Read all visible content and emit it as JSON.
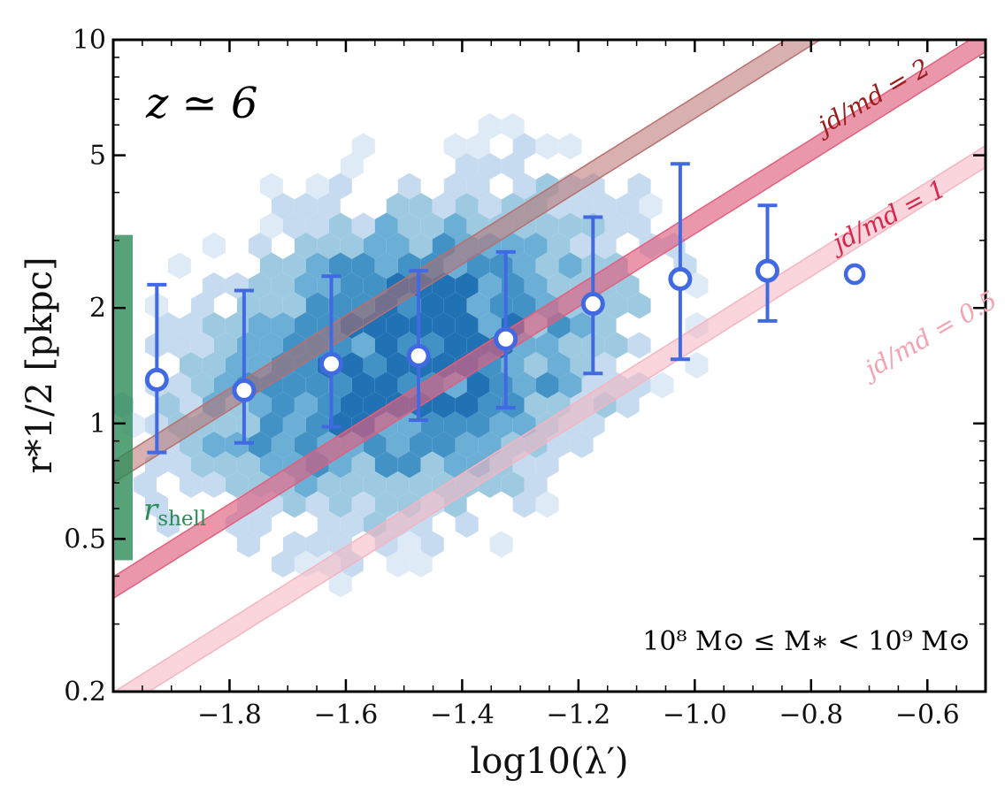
{
  "chart_data": {
    "type": "scatter",
    "title": "z ≃ 6",
    "xlabel": "log10(λ′)",
    "ylabel": "r*1/2 [pkpc]",
    "xlim": [
      -2.0,
      -0.5
    ],
    "ylim": [
      0.2,
      10
    ],
    "yscale": "log",
    "x_ticks": [
      -1.8,
      -1.6,
      -1.4,
      -1.2,
      -1.0,
      -0.8,
      -0.6
    ],
    "x_tick_labels": [
      "−1.8",
      "−1.6",
      "−1.4",
      "−1.2",
      "−1.0",
      "−0.8",
      "−0.6"
    ],
    "y_ticks": [
      0.2,
      0.5,
      1,
      2,
      5,
      10
    ],
    "y_tick_labels": [
      "0.2",
      "0.5",
      "1",
      "2",
      "5",
      "10"
    ],
    "mass_bin_label": "10⁸ M⊙ ≤ M∗ < 10⁹ M⊙",
    "rshell": {
      "label": "rshell",
      "label_main": "r",
      "label_sub": "shell",
      "range": [
        0.44,
        3.1
      ],
      "color": "#2e8b57"
    },
    "series": [
      {
        "name": "median r*1/2",
        "color": "#4169e1",
        "x": [
          -1.925,
          -1.775,
          -1.625,
          -1.475,
          -1.325,
          -1.175,
          -1.025,
          -0.875,
          -0.725
        ],
        "y": [
          1.3,
          1.22,
          1.43,
          1.5,
          1.66,
          2.05,
          2.38,
          2.5,
          2.45
        ],
        "yerr_low": [
          0.84,
          0.89,
          0.98,
          1.02,
          1.1,
          1.35,
          1.47,
          1.85,
          null
        ],
        "yerr_high": [
          2.3,
          2.22,
          2.42,
          2.5,
          2.8,
          3.45,
          4.75,
          3.7,
          null
        ],
        "hollow_last": true
      }
    ],
    "bands": [
      {
        "name": "jd/md=2",
        "label": "jd/md = 2",
        "scale": 2.0,
        "color": "#b8706e",
        "label_color": "#9c1c1c",
        "opacity": 0.55
      },
      {
        "name": "jd/md=1",
        "label": "jd/md = 1",
        "scale": 1.0,
        "color": "#e0607e",
        "label_color": "#d6284c",
        "opacity": 0.65
      },
      {
        "name": "jd/md=0.5",
        "label": "jd/md = 0.5",
        "scale": 0.5,
        "color": "#f6b4c0",
        "label_color": "#f4a3b2",
        "opacity": 0.55
      }
    ],
    "band_model": {
      "base_amplitude_low": 1.3,
      "base_amplitude_high": 1.48,
      "power": 0.95,
      "x_reference": -1.4
    },
    "density": {
      "type": "hexbin",
      "cmap": [
        "#deebf7",
        "#c6dbef",
        "#9ecae1",
        "#6baed6",
        "#4292c6",
        "#2171b5"
      ],
      "center_x": -1.5,
      "center_logr": 0.17,
      "sigma_x": 0.22,
      "sigma_logr": 0.23,
      "slope": 0.35
    }
  }
}
